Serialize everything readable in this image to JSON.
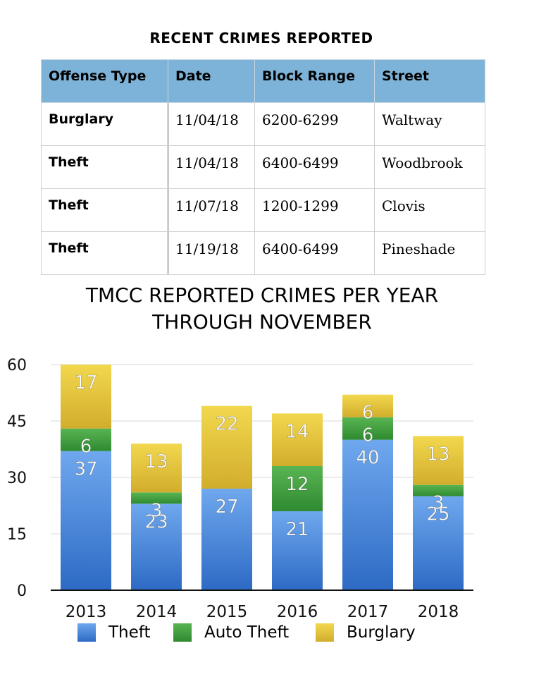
{
  "table": {
    "title": "RECENT CRIMES REPORTED",
    "headers": [
      "Offense Type",
      "Date",
      "Block Range",
      "Street"
    ],
    "rows": [
      {
        "offense": "Burglary",
        "date": "11/04/18",
        "block": "6200-6299",
        "street": "Waltway"
      },
      {
        "offense": "Theft",
        "date": "11/04/18",
        "block": "6400-6499",
        "street": "Woodbrook"
      },
      {
        "offense": "Theft",
        "date": "11/07/18",
        "block": "1200-1299",
        "street": "Clovis"
      },
      {
        "offense": "Theft",
        "date": "11/19/18",
        "block": "6400-6499",
        "street": "Pineshade"
      }
    ]
  },
  "chart_data": {
    "type": "bar",
    "stacked": true,
    "title_line1": "TMCC REPORTED CRIMES PER YEAR",
    "title_line2": "THROUGH NOVEMBER",
    "categories": [
      "2013",
      "2014",
      "2015",
      "2016",
      "2017",
      "2018"
    ],
    "series": [
      {
        "name": "Theft",
        "values": [
          37,
          23,
          27,
          21,
          40,
          25
        ],
        "color": "#3c7fd6"
      },
      {
        "name": "Auto Theft",
        "values": [
          6,
          3,
          0,
          12,
          6,
          3
        ],
        "color": "#3f9e3f"
      },
      {
        "name": "Burglary",
        "values": [
          17,
          13,
          22,
          14,
          6,
          13
        ],
        "color": "#e2c23c"
      }
    ],
    "yticks": [
      0,
      15,
      30,
      45,
      60
    ],
    "ylim": [
      0,
      60
    ],
    "grid": true,
    "legend_position": "bottom"
  }
}
